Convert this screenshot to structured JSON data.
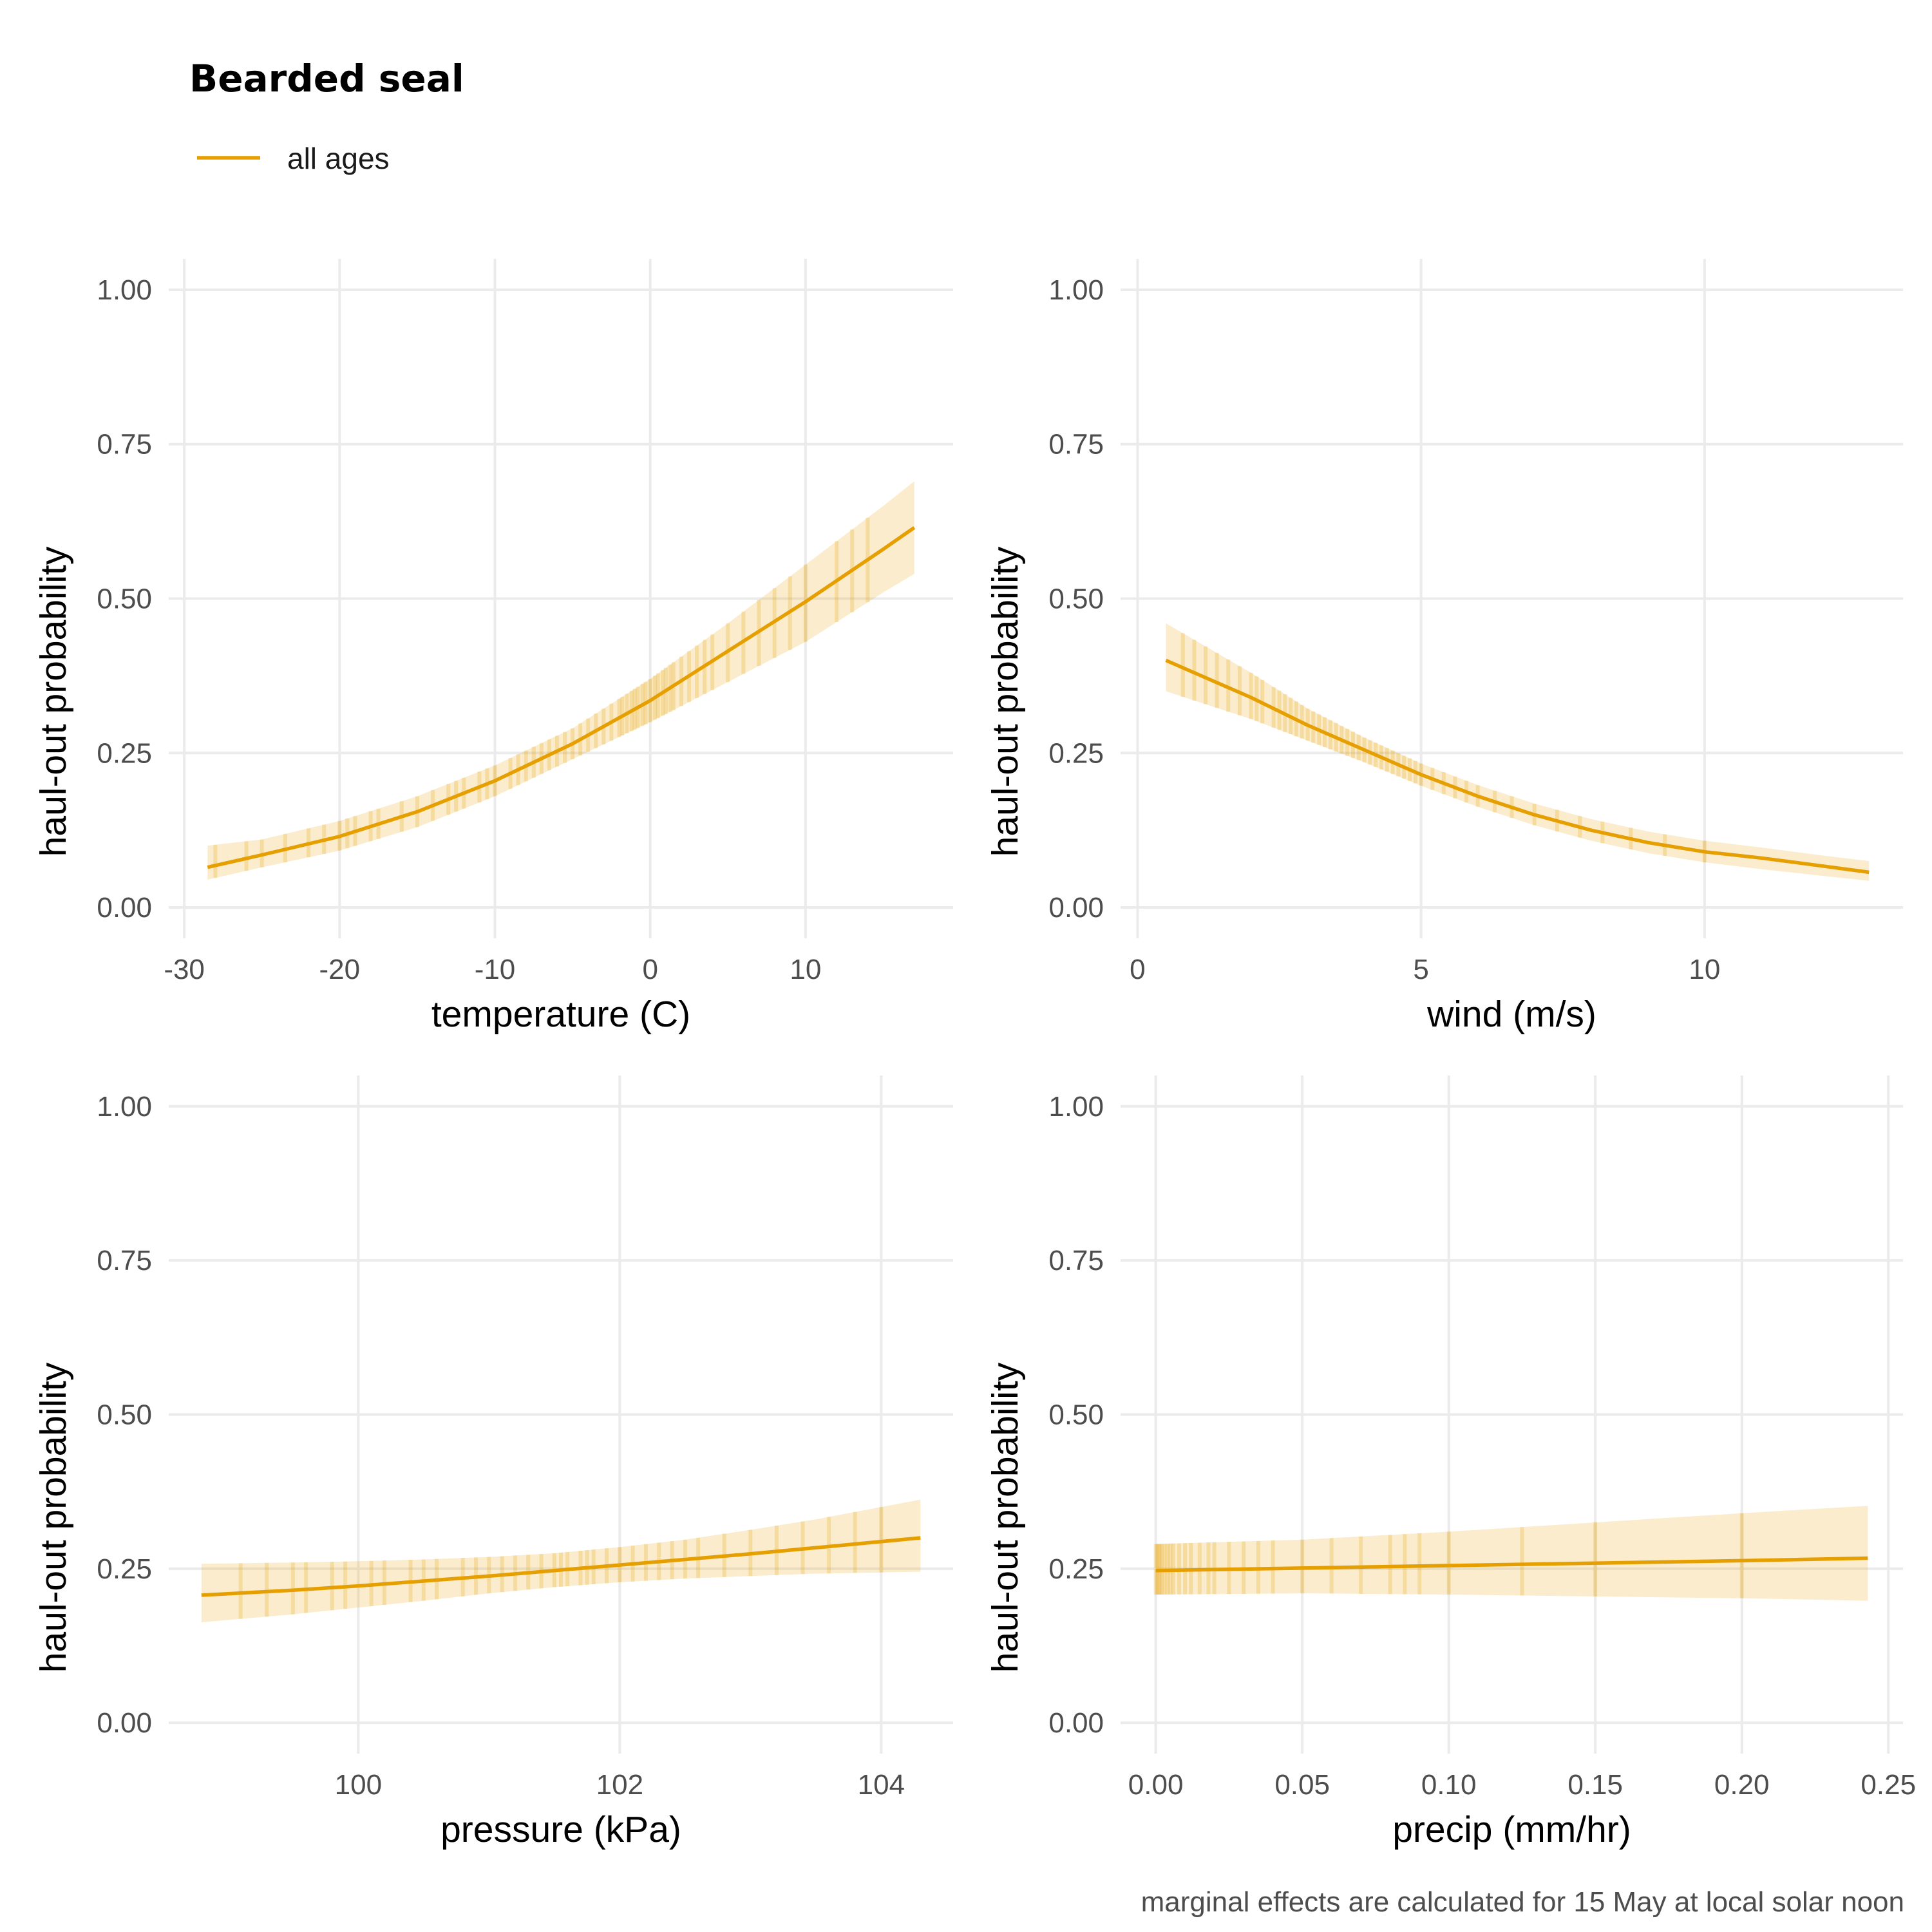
{
  "legend": {
    "title": "Bearded seal",
    "label": "all ages",
    "color": "#E69F00"
  },
  "caption": "marginal effects are calculated for 15 May at local solar noon",
  "colors": {
    "line": "#E69F00",
    "ribbon": "#E69F00",
    "grid": "#EBEBEB"
  },
  "chart_data": [
    {
      "type": "line",
      "xlabel": "temperature (C)",
      "ylabel": "haul-out probability",
      "xlim": [
        -31,
        19.5
      ],
      "ylim": [
        -0.05,
        1.05
      ],
      "x_ticks": [
        -30,
        -20,
        -10,
        0,
        10
      ],
      "x_tick_labels": [
        "-30",
        "-20",
        "-10",
        "0",
        "10"
      ],
      "y_ticks": [
        0,
        0.25,
        0.5,
        0.75,
        1
      ],
      "y_tick_labels": [
        "0.00",
        "0.25",
        "0.50",
        "0.75",
        "1.00"
      ],
      "series": [
        {
          "label": "all ages",
          "x": [
            -28.5,
            -25,
            -20,
            -15,
            -10,
            -5,
            0,
            5,
            10,
            15,
            17
          ],
          "y": [
            0.065,
            0.085,
            0.115,
            0.155,
            0.205,
            0.265,
            0.335,
            0.415,
            0.495,
            0.58,
            0.615
          ],
          "lower": [
            0.045,
            0.065,
            0.092,
            0.13,
            0.18,
            0.24,
            0.3,
            0.365,
            0.43,
            0.51,
            0.54
          ],
          "upper": [
            0.1,
            0.11,
            0.14,
            0.18,
            0.23,
            0.29,
            0.37,
            0.46,
            0.555,
            0.65,
            0.69
          ]
        }
      ],
      "rug": [
        -28,
        -26,
        -25,
        -23.5,
        -22,
        -21,
        -20,
        -19.5,
        -19,
        -18,
        -17.5,
        -16,
        -15,
        -14,
        -13,
        -12.5,
        -12,
        -11,
        -10.5,
        -10,
        -9,
        -8.5,
        -8,
        -7.5,
        -7,
        -6.5,
        -6,
        -5.5,
        -5,
        -4.5,
        -4,
        -3.5,
        -3,
        -2.5,
        -2,
        -1.8,
        -1.5,
        -1.2,
        -1,
        -0.8,
        -0.5,
        -0.3,
        0,
        0.3,
        0.5,
        0.8,
        1,
        1.3,
        1.5,
        2,
        2.5,
        3,
        3.5,
        4,
        5,
        6,
        7,
        8,
        9,
        10,
        12,
        13,
        14
      ]
    },
    {
      "type": "line",
      "xlabel": "wind (m/s)",
      "ylabel": "haul-out probability",
      "xlim": [
        -0.3,
        13.5
      ],
      "ylim": [
        -0.05,
        1.05
      ],
      "x_ticks": [
        0,
        5,
        10
      ],
      "x_tick_labels": [
        "0",
        "5",
        "10"
      ],
      "y_ticks": [
        0,
        0.25,
        0.5,
        0.75,
        1
      ],
      "y_tick_labels": [
        "0.00",
        "0.25",
        "0.50",
        "0.75",
        "1.00"
      ],
      "series": [
        {
          "label": "all ages",
          "x": [
            0.5,
            2,
            3,
            4,
            5,
            6,
            7,
            8,
            9,
            10,
            11,
            12,
            12.9
          ],
          "y": [
            0.4,
            0.34,
            0.295,
            0.255,
            0.215,
            0.18,
            0.15,
            0.125,
            0.105,
            0.09,
            0.08,
            0.068,
            0.057
          ],
          "lower": [
            0.35,
            0.305,
            0.27,
            0.235,
            0.197,
            0.163,
            0.133,
            0.108,
            0.088,
            0.073,
            0.062,
            0.052,
            0.043
          ],
          "upper": [
            0.46,
            0.38,
            0.322,
            0.275,
            0.233,
            0.198,
            0.168,
            0.143,
            0.123,
            0.108,
            0.097,
            0.085,
            0.075
          ]
        }
      ],
      "rug": [
        0.8,
        1,
        1.2,
        1.4,
        1.6,
        1.8,
        2,
        2.1,
        2.2,
        2.4,
        2.5,
        2.6,
        2.7,
        2.8,
        2.9,
        3,
        3.1,
        3.2,
        3.3,
        3.4,
        3.5,
        3.6,
        3.7,
        3.8,
        3.9,
        4,
        4.1,
        4.2,
        4.3,
        4.4,
        4.5,
        4.6,
        4.7,
        4.8,
        4.9,
        5,
        5.2,
        5.4,
        5.6,
        5.8,
        6,
        6.3,
        6.6,
        7,
        7.4,
        7.8,
        8.2,
        8.7,
        9.3,
        10
      ]
    },
    {
      "type": "line",
      "xlabel": "pressure (kPa)",
      "ylabel": "haul-out probability",
      "xlim": [
        98.55,
        104.55
      ],
      "ylim": [
        -0.05,
        1.05
      ],
      "x_ticks": [
        100,
        102,
        104
      ],
      "x_tick_labels": [
        "100",
        "102",
        "104"
      ],
      "y_ticks": [
        0,
        0.25,
        0.5,
        0.75,
        1
      ],
      "y_tick_labels": [
        "0.00",
        "0.25",
        "0.50",
        "0.75",
        "1.00"
      ],
      "series": [
        {
          "label": "all ages",
          "x": [
            98.8,
            99.5,
            100,
            100.5,
            101,
            101.5,
            102,
            102.5,
            103,
            103.5,
            104.3
          ],
          "y": [
            0.207,
            0.215,
            0.222,
            0.23,
            0.238,
            0.247,
            0.256,
            0.265,
            0.274,
            0.284,
            0.3
          ],
          "lower": [
            0.163,
            0.176,
            0.187,
            0.198,
            0.21,
            0.22,
            0.228,
            0.234,
            0.238,
            0.242,
            0.245
          ],
          "upper": [
            0.258,
            0.26,
            0.262,
            0.265,
            0.269,
            0.275,
            0.285,
            0.297,
            0.313,
            0.33,
            0.362
          ]
        }
      ],
      "rug": [
        99.1,
        99.3,
        99.5,
        99.6,
        99.8,
        99.9,
        100.1,
        100.2,
        100.4,
        100.5,
        100.6,
        100.8,
        100.9,
        101,
        101.1,
        101.2,
        101.3,
        101.4,
        101.5,
        101.55,
        101.6,
        101.7,
        101.75,
        101.8,
        101.9,
        102,
        102.1,
        102.2,
        102.3,
        102.4,
        102.5,
        102.6,
        102.8,
        103,
        103.2,
        103.4,
        103.6,
        103.8,
        104
      ]
    },
    {
      "type": "line",
      "xlabel": "precip (mm/hr)",
      "ylabel": "haul-out probability",
      "xlim": [
        -0.012,
        0.255
      ],
      "ylim": [
        -0.05,
        1.05
      ],
      "x_ticks": [
        0,
        0.05,
        0.1,
        0.15,
        0.2,
        0.25
      ],
      "x_tick_labels": [
        "0.00",
        "0.05",
        "0.10",
        "0.15",
        "0.20",
        "0.25"
      ],
      "y_ticks": [
        0,
        0.25,
        0.5,
        0.75,
        1
      ],
      "y_tick_labels": [
        "0.00",
        "0.25",
        "0.50",
        "0.75",
        "1.00"
      ],
      "series": [
        {
          "label": "all ages",
          "x": [
            0,
            0.05,
            0.1,
            0.15,
            0.2,
            0.243
          ],
          "y": [
            0.247,
            0.251,
            0.255,
            0.259,
            0.263,
            0.267
          ],
          "lower": [
            0.208,
            0.21,
            0.208,
            0.205,
            0.202,
            0.198
          ],
          "upper": [
            0.29,
            0.297,
            0.31,
            0.325,
            0.34,
            0.352
          ]
        }
      ],
      "rug": [
        0.0,
        0.0005,
        0.001,
        0.0015,
        0.002,
        0.003,
        0.004,
        0.005,
        0.006,
        0.008,
        0.01,
        0.012,
        0.015,
        0.018,
        0.02,
        0.025,
        0.03,
        0.035,
        0.04,
        0.05,
        0.06,
        0.07,
        0.08,
        0.085,
        0.09,
        0.1,
        0.125,
        0.15,
        0.2
      ]
    }
  ]
}
